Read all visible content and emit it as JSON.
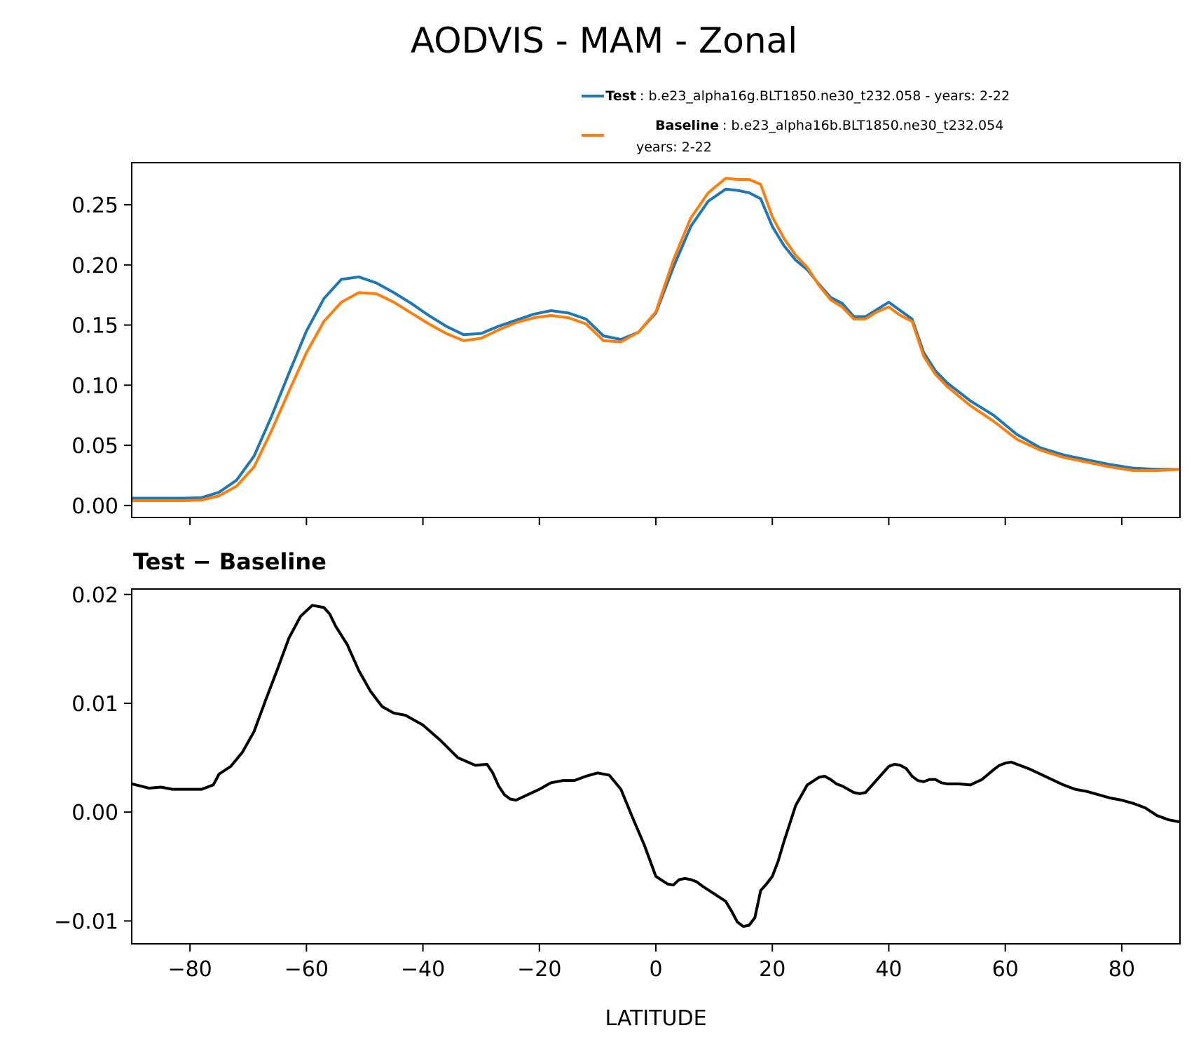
{
  "chart_data": [
    {
      "type": "line",
      "title": "AODVIS - MAM - Zonal",
      "xlabel": "",
      "ylabel": "",
      "xlim": [
        -90,
        90
      ],
      "ylim": [
        -0.01,
        0.285
      ],
      "xticks": [
        -80,
        -60,
        -40,
        -20,
        0,
        20,
        40,
        60,
        80
      ],
      "yticks": [
        0.0,
        0.05,
        0.1,
        0.15,
        0.2,
        0.25
      ],
      "ytick_labels": [
        "0.00",
        "0.05",
        "0.10",
        "0.15",
        "0.20",
        "0.25"
      ],
      "legend_position": "top-right",
      "x": [
        -90,
        -87,
        -84,
        -81,
        -78,
        -75,
        -72,
        -69,
        -66,
        -63,
        -60,
        -57,
        -54,
        -51,
        -48,
        -45,
        -42,
        -39,
        -36,
        -33,
        -30,
        -27,
        -24,
        -21,
        -18,
        -15,
        -12,
        -9,
        -6,
        -3,
        0,
        3,
        6,
        9,
        12,
        14,
        16,
        18,
        20,
        22,
        24,
        26,
        28,
        30,
        32,
        34,
        36,
        38,
        40,
        42,
        44,
        46,
        48,
        50,
        54,
        58,
        62,
        66,
        70,
        74,
        78,
        82,
        86,
        90
      ],
      "series": [
        {
          "name": "Test",
          "label": "b.e23_alpha16g.BLT1850.ne30_t232.058 - years: 2-22",
          "color": "#1f77b4",
          "values": [
            0.006,
            0.006,
            0.006,
            0.006,
            0.0065,
            0.011,
            0.021,
            0.041,
            0.074,
            0.11,
            0.145,
            0.172,
            0.188,
            0.19,
            0.185,
            0.177,
            0.168,
            0.158,
            0.149,
            0.142,
            0.143,
            0.149,
            0.154,
            0.159,
            0.162,
            0.16,
            0.155,
            0.141,
            0.138,
            0.144,
            0.16,
            0.198,
            0.232,
            0.253,
            0.263,
            0.262,
            0.26,
            0.255,
            0.232,
            0.216,
            0.204,
            0.196,
            0.184,
            0.173,
            0.168,
            0.157,
            0.157,
            0.163,
            0.169,
            0.162,
            0.155,
            0.127,
            0.112,
            0.102,
            0.087,
            0.075,
            0.059,
            0.048,
            0.042,
            0.038,
            0.034,
            0.031,
            0.03,
            0.03
          ]
        },
        {
          "name": "Baseline",
          "label": "b.e23_alpha16b.BLT1850.ne30_t232.054",
          "label_line2": "years: 2-22",
          "color": "#ff7f0e",
          "values": [
            0.004,
            0.004,
            0.004,
            0.004,
            0.0045,
            0.008,
            0.016,
            0.032,
            0.062,
            0.095,
            0.127,
            0.153,
            0.169,
            0.177,
            0.176,
            0.169,
            0.16,
            0.151,
            0.143,
            0.137,
            0.139,
            0.146,
            0.152,
            0.156,
            0.158,
            0.156,
            0.151,
            0.137,
            0.136,
            0.144,
            0.161,
            0.204,
            0.239,
            0.26,
            0.272,
            0.271,
            0.271,
            0.267,
            0.24,
            0.222,
            0.208,
            0.198,
            0.183,
            0.171,
            0.165,
            0.155,
            0.155,
            0.161,
            0.165,
            0.158,
            0.153,
            0.124,
            0.109,
            0.099,
            0.083,
            0.07,
            0.055,
            0.046,
            0.04,
            0.036,
            0.032,
            0.029,
            0.029,
            0.03
          ]
        }
      ]
    },
    {
      "type": "line",
      "title": "Test − Baseline",
      "xlabel": "LATITUDE",
      "ylabel": "",
      "xlim": [
        -90,
        90
      ],
      "ylim": [
        -0.0121,
        0.0205
      ],
      "xticks": [
        -80,
        -60,
        -40,
        -20,
        0,
        20,
        40,
        60,
        80
      ],
      "xtick_labels": [
        "−80",
        "−60",
        "−40",
        "−20",
        "0",
        "20",
        "40",
        "60",
        "80"
      ],
      "yticks": [
        -0.01,
        0.0,
        0.01,
        0.02
      ],
      "ytick_labels": [
        "−0.01",
        "0.00",
        "0.01",
        "0.02"
      ],
      "x": [
        -90,
        -87,
        -85,
        -83,
        -81,
        -78,
        -76,
        -75,
        -73,
        -71,
        -69,
        -67,
        -65,
        -63,
        -61,
        -59,
        -57,
        -56,
        -55,
        -53,
        -51,
        -49,
        -47,
        -45,
        -43,
        -40,
        -37,
        -34,
        -31,
        -29,
        -28,
        -27,
        -26,
        -25,
        -24,
        -22,
        -20,
        -18,
        -16,
        -14,
        -12,
        -10,
        -8,
        -6,
        -4,
        -2,
        0,
        2,
        3,
        4,
        5,
        6,
        7,
        8,
        10,
        12,
        13,
        14,
        15,
        16,
        17,
        18,
        19,
        20,
        21,
        22,
        24,
        26,
        28,
        29,
        30,
        31,
        32,
        33,
        34,
        35,
        36,
        38,
        40,
        41,
        42,
        43,
        44,
        45,
        46,
        47,
        48,
        49,
        50,
        52,
        54,
        56,
        58,
        59,
        60,
        61,
        62,
        64,
        66,
        68,
        70,
        72,
        74,
        76,
        78,
        80,
        82,
        84,
        86,
        88,
        90
      ],
      "series": [
        {
          "name": "Test − Baseline",
          "color": "#000000",
          "values": [
            0.0026,
            0.0022,
            0.0023,
            0.0021,
            0.0021,
            0.0021,
            0.0025,
            0.0035,
            0.0042,
            0.0055,
            0.0074,
            0.0103,
            0.0131,
            0.016,
            0.018,
            0.019,
            0.0188,
            0.0182,
            0.0171,
            0.0154,
            0.013,
            0.0111,
            0.0097,
            0.0091,
            0.0089,
            0.008,
            0.0066,
            0.005,
            0.0043,
            0.0044,
            0.0036,
            0.0024,
            0.0016,
            0.0012,
            0.0011,
            0.0016,
            0.0021,
            0.0027,
            0.0029,
            0.0029,
            0.0033,
            0.0036,
            0.0034,
            0.0021,
            -0.0005,
            -0.003,
            -0.0059,
            -0.0066,
            -0.0067,
            -0.0062,
            -0.0061,
            -0.0062,
            -0.0064,
            -0.0068,
            -0.0075,
            -0.0082,
            -0.0091,
            -0.0101,
            -0.0105,
            -0.0104,
            -0.0097,
            -0.0072,
            -0.0066,
            -0.0059,
            -0.0045,
            -0.0027,
            0.0006,
            0.0025,
            0.0032,
            0.0033,
            0.003,
            0.0026,
            0.0024,
            0.0021,
            0.0018,
            0.0017,
            0.0018,
            0.003,
            0.0042,
            0.0044,
            0.0043,
            0.004,
            0.0033,
            0.0029,
            0.0028,
            0.003,
            0.003,
            0.0027,
            0.0026,
            0.0026,
            0.0025,
            0.003,
            0.0039,
            0.0043,
            0.0045,
            0.0046,
            0.0044,
            0.004,
            0.0035,
            0.003,
            0.0025,
            0.0021,
            0.0019,
            0.0016,
            0.0013,
            0.0011,
            0.0008,
            0.0004,
            -0.0003,
            -0.0007,
            -0.0009
          ]
        }
      ]
    }
  ]
}
